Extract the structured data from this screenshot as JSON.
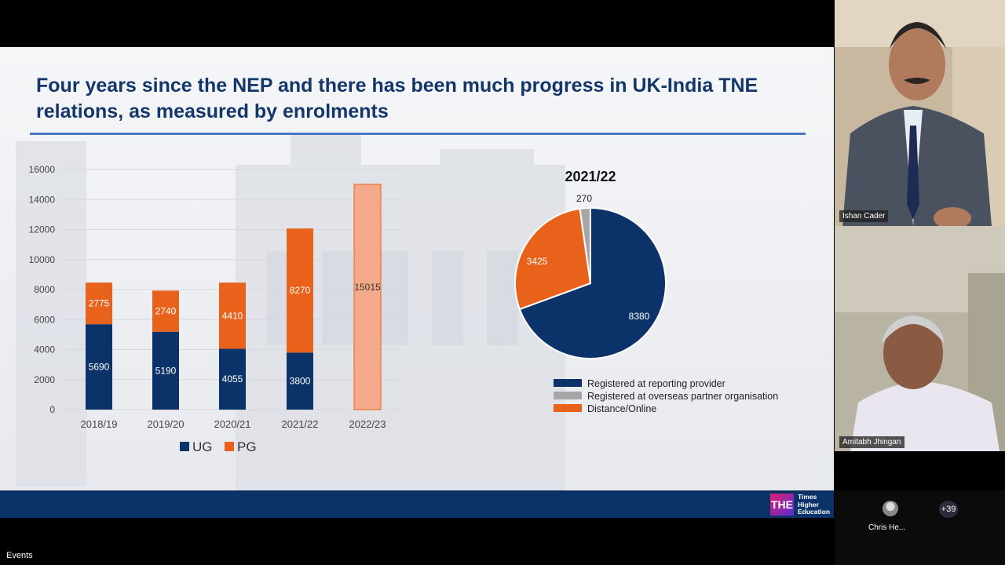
{
  "slide": {
    "title": "Four years since the NEP and there has been much progress in UK-India TNE relations, as measured by enrolments"
  },
  "chart_data": [
    {
      "type": "bar",
      "stacked": true,
      "categories": [
        "2018/19",
        "2019/20",
        "2020/21",
        "2021/22",
        "2022/23"
      ],
      "series": [
        {
          "name": "UG",
          "values": [
            5690,
            5190,
            4055,
            3800,
            null
          ],
          "color": "#0c3369"
        },
        {
          "name": "PG",
          "values": [
            2775,
            2740,
            4410,
            8270,
            null
          ],
          "color": "#e8621c"
        }
      ],
      "total_only": {
        "category": "2022/23",
        "value": 15015,
        "color": "#f4a98a"
      },
      "ylim": [
        0,
        16000
      ],
      "yticks": [
        "0",
        "2000",
        "4000",
        "6000",
        "8000",
        "10000",
        "12000",
        "14000",
        "16000"
      ],
      "legend_position": "bottom"
    },
    {
      "type": "pie",
      "title": "2021/22",
      "slices": [
        {
          "label": "Registered at reporting provider",
          "value": 8380,
          "color": "#0c3369"
        },
        {
          "label": "Distance/Online",
          "value": 3425,
          "color": "#e8621c"
        },
        {
          "label": "Registered at overseas partner organisation",
          "value": 270,
          "color": "#a6a6a6"
        }
      ],
      "legend": [
        "Registered at reporting provider",
        "Registered at overseas partner organisation",
        "Distance/Online"
      ],
      "legend_position": "bottom"
    }
  ],
  "footer": {
    "badge": "THE",
    "brand_line1": "Times",
    "brand_line2": "Higher",
    "brand_line3": "Education"
  },
  "participants": {
    "speaker1": "Ishan Cader",
    "speaker2": "Amitabh Jhingan",
    "strip_name": "Chris He...",
    "more_count": "+39"
  },
  "events_label": "Events"
}
